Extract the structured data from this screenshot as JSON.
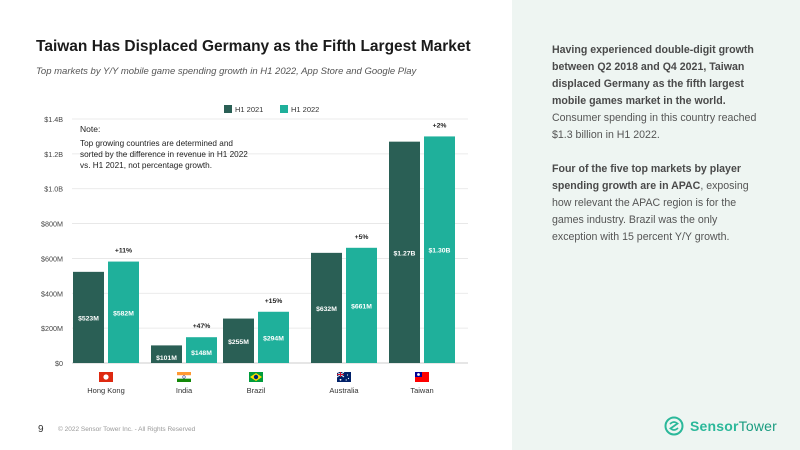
{
  "slide": {
    "title": "Taiwan Has Displaced Germany as the Fifth Largest Market",
    "subtitle": "Top markets by Y/Y mobile game spending growth in H1 2022, App Store and Google Play",
    "page_number": "9",
    "copyright": "© 2022 Sensor Tower Inc. - All Rights Reserved"
  },
  "note": {
    "title": "Note:",
    "text": "Top growing countries are determined and sorted by the difference in revenue in H1 2022 vs. H1 2021, not percentage growth."
  },
  "sidebar": {
    "p1_bold": "Having experienced double-digit growth between Q2 2018 and Q4 2021, Taiwan displaced Germany as the fifth largest mobile games market in the world.",
    "p1_rest": " Consumer spending in this country reached $1.3 billion in H1 2022.",
    "p2_bold": "Four of the five top markets by player spending growth are in APAC",
    "p2_rest": ", exposing how relevant the APAC region is for the games industry. Brazil was the only exception with 15 percent Y/Y growth."
  },
  "logo": {
    "part1": "Sensor",
    "part2": "Tower"
  },
  "colors": {
    "h1_2021": "#2a5f55",
    "h1_2022": "#1fb09b",
    "axis_text": "#444444",
    "gridline": "#e4e4e4"
  },
  "chart_data": {
    "type": "bar",
    "title": "Taiwan Has Displaced Germany as the Fifth Largest Market",
    "subtitle": "Top markets by Y/Y mobile game spending growth in H1 2022, App Store and Google Play",
    "categories": [
      "Hong Kong",
      "India",
      "Brazil",
      "Australia",
      "Taiwan"
    ],
    "flag_icons": [
      "hong-kong-flag-icon",
      "india-flag-icon",
      "brazil-flag-icon",
      "australia-flag-icon",
      "taiwan-flag-icon"
    ],
    "series": [
      {
        "name": "H1 2021",
        "values": [
          523,
          101,
          255,
          632,
          1270
        ],
        "labels": [
          "$523M",
          "$101M",
          "$255M",
          "$632M",
          "$1.27B"
        ]
      },
      {
        "name": "H1 2022",
        "values": [
          582,
          148,
          294,
          661,
          1300
        ],
        "labels": [
          "$582M",
          "$148M",
          "$294M",
          "$661M",
          "$1.30B"
        ]
      }
    ],
    "growth_labels": [
      "+11%",
      "+47%",
      "+15%",
      "+5%",
      "+2%"
    ],
    "unit": "USD millions",
    "yticks": [
      0,
      200,
      400,
      600,
      800,
      1000,
      1200,
      1400
    ],
    "ytick_labels": [
      "$0",
      "$200M",
      "$400M",
      "$600M",
      "$800M",
      "$1.0B",
      "$1.2B",
      "$1.4B"
    ],
    "ylim": [
      0,
      1400
    ],
    "grid": true,
    "legend": "top-center"
  }
}
